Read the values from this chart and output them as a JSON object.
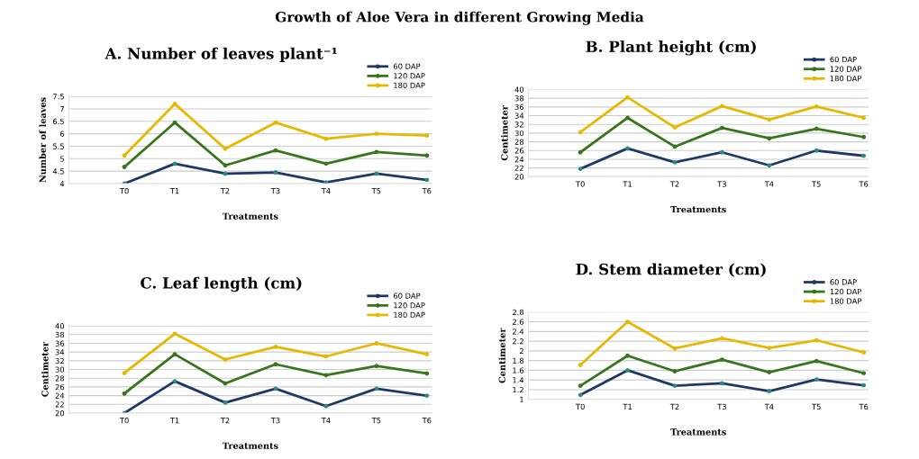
{
  "chart_data": [
    {
      "type": "line",
      "title": "A. Number of leaves plant⁻¹",
      "xlabel": "Treatments",
      "ylabel": "Number of leaves",
      "annotations": [
        "Growth of Aloe Vera in different Growing Media"
      ],
      "categories": [
        "T0",
        "T1",
        "T2",
        "T3",
        "T4",
        "T5",
        "T6"
      ],
      "series": [
        {
          "name": "60 DAP",
          "color": "#1f3864",
          "values": [
            4.0,
            4.8,
            4.4,
            4.45,
            4.05,
            4.4,
            4.15
          ]
        },
        {
          "name": "120 DAP",
          "color": "#38761d",
          "values": [
            4.67,
            6.45,
            4.73,
            5.33,
            4.8,
            5.27,
            5.13
          ]
        },
        {
          "name": "180 DAP",
          "color": "#e6b800",
          "values": [
            5.13,
            7.2,
            5.4,
            6.45,
            5.8,
            6.0,
            5.93
          ]
        }
      ],
      "ylim": [
        4,
        7.5
      ],
      "yticks": [
        4,
        4.5,
        5,
        5.5,
        6,
        6.5,
        7,
        7.5
      ],
      "grid": "y",
      "legend": "top right",
      "marker": "circle",
      "line_style": "solid"
    },
    {
      "type": "line",
      "title": "B. Plant height (cm)",
      "xlabel": "Treatments",
      "ylabel": "Centimeter",
      "categories": [
        "T0",
        "T1",
        "T2",
        "T3",
        "T4",
        "T5",
        "T6"
      ],
      "series": [
        {
          "name": "60 DAP",
          "color": "#1f3864",
          "values": [
            21.8,
            26.5,
            23.3,
            25.6,
            22.6,
            26.0,
            24.8
          ]
        },
        {
          "name": "120 DAP",
          "color": "#38761d",
          "values": [
            25.6,
            33.5,
            26.9,
            31.2,
            28.8,
            31.0,
            29.1
          ]
        },
        {
          "name": "180 DAP",
          "color": "#e6b800",
          "values": [
            30.2,
            38.2,
            31.3,
            36.2,
            33.1,
            36.1,
            33.5
          ]
        }
      ],
      "ylim": [
        20,
        40
      ],
      "yticks": [
        20,
        22,
        24,
        26,
        28,
        30,
        32,
        34,
        36,
        38,
        40
      ],
      "grid": "y",
      "legend": "top right",
      "marker": "circle",
      "line_style": "solid"
    },
    {
      "type": "line",
      "title": "C. Leaf length (cm)",
      "xlabel": "Treatments",
      "ylabel": "Centimeter",
      "categories": [
        "T0",
        "T1",
        "T2",
        "T3",
        "T4",
        "T5",
        "T6"
      ],
      "series": [
        {
          "name": "60 DAP",
          "color": "#1f3864",
          "values": [
            20.0,
            27.3,
            22.4,
            25.6,
            21.6,
            25.6,
            24.0
          ]
        },
        {
          "name": "120 DAP",
          "color": "#38761d",
          "values": [
            24.5,
            33.5,
            26.8,
            31.2,
            28.7,
            30.8,
            29.1
          ]
        },
        {
          "name": "180 DAP",
          "color": "#e6b800",
          "values": [
            29.2,
            38.2,
            32.3,
            35.2,
            33.0,
            36.0,
            33.5
          ]
        }
      ],
      "ylim": [
        20,
        40
      ],
      "yticks": [
        20,
        22,
        24,
        26,
        28,
        30,
        32,
        34,
        36,
        38,
        40
      ],
      "grid": "y",
      "legend": "top right",
      "marker": "circle",
      "line_style": "solid"
    },
    {
      "type": "line",
      "title": "D. Stem diameter (cm)",
      "xlabel": "Treatments",
      "ylabel": "Centimeter",
      "categories": [
        "T0",
        "T1",
        "T2",
        "T3",
        "T4",
        "T5",
        "T6"
      ],
      "series": [
        {
          "name": "60 DAP",
          "color": "#1f3864",
          "values": [
            1.09,
            1.6,
            1.28,
            1.33,
            1.17,
            1.41,
            1.29
          ]
        },
        {
          "name": "120 DAP",
          "color": "#38761d",
          "values": [
            1.28,
            1.9,
            1.58,
            1.82,
            1.56,
            1.79,
            1.54
          ]
        },
        {
          "name": "180 DAP",
          "color": "#e6b800",
          "values": [
            1.71,
            2.6,
            2.05,
            2.26,
            2.06,
            2.22,
            1.97
          ]
        }
      ],
      "ylim": [
        1,
        2.8
      ],
      "yticks": [
        1,
        1.2,
        1.4,
        1.6,
        1.8,
        2,
        2.2,
        2.4,
        2.6,
        2.8
      ],
      "grid": "y",
      "legend": "top right",
      "marker": "circle",
      "line_style": "solid"
    }
  ]
}
